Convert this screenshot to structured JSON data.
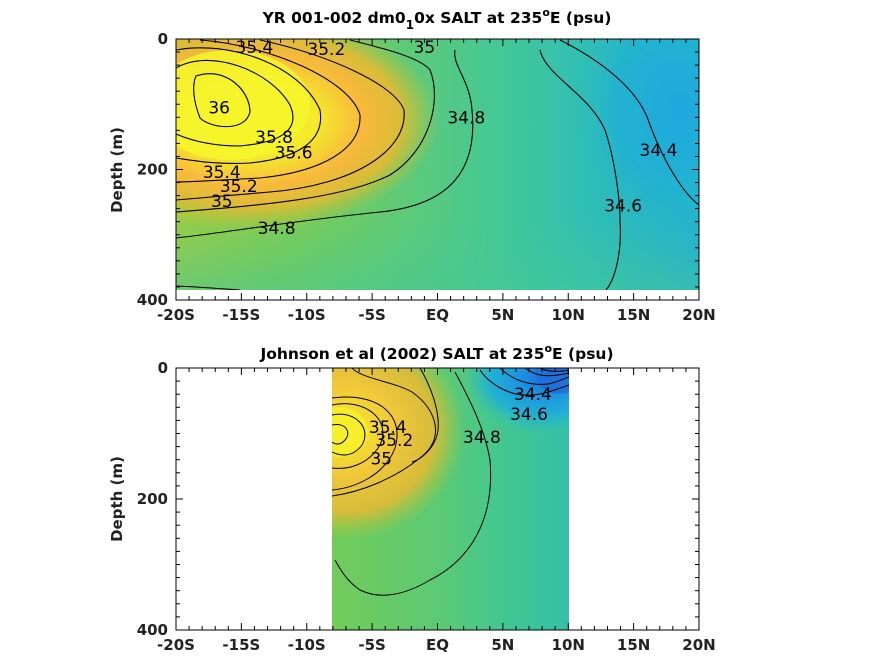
{
  "colors": {
    "salt_low": "#1e6fd9",
    "salt_fresh": "#1fb3d2",
    "salt_mid": "#3ec8a6",
    "salt_mid2": "#7ccc53",
    "salt_high": "#f9a340",
    "salt_max": "#f6f62a"
  },
  "chart_data": [
    {
      "type": "heatmap",
      "title_parts": [
        "YR 001-002 dm0",
        "1",
        "0x SALT at 235",
        "o",
        "E (psu)"
      ],
      "xlabel": "",
      "ylabel": "Depth (m)",
      "xlim": [
        -20,
        20
      ],
      "ylim": [
        400,
        0
      ],
      "x_ticks": [
        -20,
        -15,
        -10,
        -5,
        0,
        5,
        10,
        15,
        20
      ],
      "x_tick_labels": [
        "-20S",
        "-15S",
        "-10S",
        "-5S",
        "EQ",
        "5N",
        "10N",
        "15N",
        "20N"
      ],
      "y_ticks": [
        0,
        200,
        400
      ],
      "y_tick_labels": [
        "0",
        "200",
        "400"
      ],
      "data_extent": {
        "x": [
          -20,
          20
        ],
        "depth": [
          0,
          380
        ]
      },
      "salinity_core": {
        "lat": -17.5,
        "depth": 90,
        "value": 36.0
      },
      "contour_labels": [
        {
          "text": "35.4",
          "x": -14,
          "depth": 12
        },
        {
          "text": "35.2",
          "x": -8.5,
          "depth": 15
        },
        {
          "text": "35",
          "x": -1,
          "depth": 12
        },
        {
          "text": "36",
          "x": -16.7,
          "depth": 105
        },
        {
          "text": "35.8",
          "x": -12.5,
          "depth": 150
        },
        {
          "text": "35.6",
          "x": -11,
          "depth": 174
        },
        {
          "text": "35.4",
          "x": -16.5,
          "depth": 204
        },
        {
          "text": "35.2",
          "x": -15.2,
          "depth": 225
        },
        {
          "text": "35",
          "x": -16.5,
          "depth": 248
        },
        {
          "text": "34.8",
          "x": 2.2,
          "depth": 120
        },
        {
          "text": "34.8",
          "x": -12.3,
          "depth": 290
        },
        {
          "text": "34.6",
          "x": 14.2,
          "depth": 255
        },
        {
          "text": "34.4",
          "x": 16.9,
          "depth": 170
        }
      ]
    },
    {
      "type": "heatmap",
      "title_parts": [
        "Johnson et al (2002) SALT at 235",
        "o",
        "E (psu)"
      ],
      "xlabel": "",
      "ylabel": "Depth (m)",
      "xlim": [
        -20,
        20
      ],
      "ylim": [
        400,
        0
      ],
      "x_ticks": [
        -20,
        -15,
        -10,
        -5,
        0,
        5,
        10,
        15,
        20
      ],
      "x_tick_labels": [
        "-20S",
        "-15S",
        "-10S",
        "-5S",
        "EQ",
        "5N",
        "10N",
        "15N",
        "20N"
      ],
      "y_ticks": [
        0,
        200,
        400
      ],
      "y_tick_labels": [
        "0",
        "200",
        "400"
      ],
      "data_extent": {
        "x": [
          -8,
          10
        ],
        "depth": [
          0,
          400
        ]
      },
      "salinity_core": {
        "lat": -8,
        "depth": 100,
        "value": 35.6
      },
      "contour_labels": [
        {
          "text": "35.4",
          "x": -3.8,
          "depth": 90
        },
        {
          "text": "35.2",
          "x": -3.3,
          "depth": 110
        },
        {
          "text": "35",
          "x": -4.3,
          "depth": 138
        },
        {
          "text": "34.8",
          "x": 3.4,
          "depth": 105
        },
        {
          "text": "34.4",
          "x": 7.3,
          "depth": 40
        },
        {
          "text": "34.6",
          "x": 7,
          "depth": 70
        }
      ]
    }
  ]
}
